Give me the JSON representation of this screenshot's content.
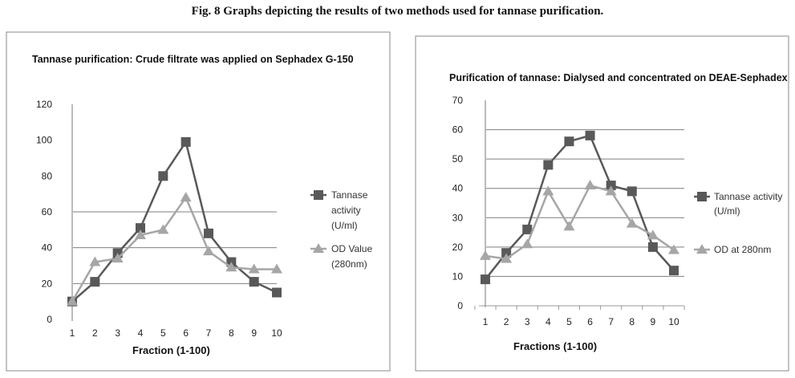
{
  "figure_title": "Fig. 8 Graphs depicting the results of two methods used for tannase purification.",
  "colors": {
    "tannase": "#595959",
    "od": "#a6a6a6",
    "grid": "#7f7f7f"
  },
  "chart_data": [
    {
      "type": "line",
      "title": "Tannase purification: Crude filtrate was applied on Sephadex G-150",
      "xlabel": "Fraction  (1-100)",
      "ylabel": "",
      "x": [
        1,
        2,
        3,
        4,
        5,
        6,
        7,
        8,
        9,
        10
      ],
      "ylim": [
        0,
        120
      ],
      "yticks": [
        0,
        20,
        40,
        60,
        80,
        100,
        120
      ],
      "gridlines": [
        20,
        40,
        60
      ],
      "legend_position": "right",
      "series": [
        {
          "name": "Tannase activity (U/ml)",
          "legend_lines": [
            "Tannase",
            "activity",
            "(U/ml)"
          ],
          "marker": "square",
          "values": [
            10,
            21,
            37,
            51,
            80,
            99,
            48,
            32,
            21,
            15
          ]
        },
        {
          "name": "OD Value (280nm)",
          "legend_lines": [
            "OD Value",
            "(280nm)"
          ],
          "marker": "triangle",
          "values": [
            10,
            32,
            34,
            47,
            50,
            68,
            38,
            29,
            28,
            28
          ]
        }
      ]
    },
    {
      "type": "line",
      "title": "Purification of tannase:  Dialysed and concentrated on DEAE-Sephadex",
      "xlabel": "Fractions (1-100)",
      "ylabel": "",
      "x": [
        1,
        2,
        3,
        4,
        5,
        6,
        7,
        8,
        9,
        10
      ],
      "ylim": [
        0,
        70
      ],
      "yticks": [
        0,
        10,
        20,
        30,
        40,
        50,
        60,
        70
      ],
      "gridlines": [
        10,
        20,
        30,
        40,
        50,
        60
      ],
      "legend_position": "right",
      "series": [
        {
          "name": "Tannase activity (U/ml)",
          "legend_lines": [
            "Tannase activity",
            "(U/ml)"
          ],
          "marker": "square",
          "values": [
            9,
            18,
            26,
            48,
            56,
            58,
            41,
            39,
            20,
            12
          ]
        },
        {
          "name": "OD at 280nm",
          "legend_lines": [
            "OD at 280nm"
          ],
          "marker": "triangle",
          "values": [
            17,
            16,
            21,
            39,
            27,
            41,
            39,
            28,
            24,
            19
          ]
        }
      ]
    }
  ]
}
